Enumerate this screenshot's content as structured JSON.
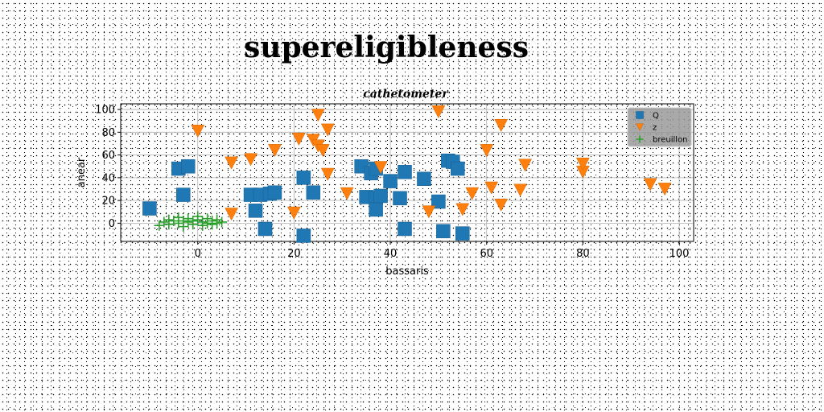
{
  "page_title": "supereligibleness",
  "chart_data": {
    "type": "scatter",
    "title": "cathetometer",
    "xlabel": "bassaris",
    "ylabel": "anear",
    "xlim": [
      -16,
      103
    ],
    "ylim": [
      -16,
      105
    ],
    "xticks": [
      0,
      20,
      40,
      60,
      80,
      100
    ],
    "yticks": [
      0,
      20,
      40,
      60,
      80,
      100
    ],
    "grid": true,
    "legend_position": "top-right",
    "series": [
      {
        "name": "Q",
        "marker": "square",
        "color": "#1f77b4",
        "points": [
          [
            -10,
            13
          ],
          [
            -4,
            48
          ],
          [
            -2,
            50
          ],
          [
            -3,
            25
          ],
          [
            11,
            25
          ],
          [
            12,
            11
          ],
          [
            13,
            25
          ],
          [
            14,
            -5
          ],
          [
            15,
            26
          ],
          [
            16,
            27
          ],
          [
            22,
            40
          ],
          [
            22,
            -11
          ],
          [
            24,
            27
          ],
          [
            34,
            50
          ],
          [
            35,
            23
          ],
          [
            36,
            44
          ],
          [
            37,
            48
          ],
          [
            37,
            22
          ],
          [
            37,
            12
          ],
          [
            38,
            24
          ],
          [
            40,
            37
          ],
          [
            42,
            22
          ],
          [
            43,
            45
          ],
          [
            43,
            -5
          ],
          [
            47,
            39
          ],
          [
            50,
            19
          ],
          [
            51,
            -7
          ],
          [
            52,
            55
          ],
          [
            53,
            54
          ],
          [
            54,
            48
          ],
          [
            55,
            -9
          ]
        ]
      },
      {
        "name": "z",
        "marker": "triangle-down",
        "color": "#ff7f0e",
        "points": [
          [
            0,
            81
          ],
          [
            7,
            8
          ],
          [
            7,
            53
          ],
          [
            11,
            56
          ],
          [
            16,
            64
          ],
          [
            20,
            9
          ],
          [
            21,
            74
          ],
          [
            24,
            73
          ],
          [
            25,
            68
          ],
          [
            25,
            95
          ],
          [
            26,
            64
          ],
          [
            27,
            82
          ],
          [
            27,
            43
          ],
          [
            31,
            26
          ],
          [
            38,
            49
          ],
          [
            48,
            10
          ],
          [
            50,
            98
          ],
          [
            55,
            12
          ],
          [
            57,
            26
          ],
          [
            60,
            64
          ],
          [
            61,
            31
          ],
          [
            63,
            16
          ],
          [
            63,
            86
          ],
          [
            67,
            29
          ],
          [
            68,
            51
          ],
          [
            80,
            45
          ],
          [
            80,
            52
          ],
          [
            94,
            34
          ],
          [
            97,
            30
          ]
        ]
      },
      {
        "name": "breuillon",
        "marker": "plus",
        "color": "#2ca02c",
        "points": [
          [
            -8,
            -2
          ],
          [
            -7,
            1
          ],
          [
            -6,
            3
          ],
          [
            -6,
            -1
          ],
          [
            -5,
            2
          ],
          [
            -4,
            5
          ],
          [
            -4,
            0
          ],
          [
            -3,
            2
          ],
          [
            -3,
            -3
          ],
          [
            -2,
            4
          ],
          [
            -2,
            1
          ],
          [
            -1,
            2
          ],
          [
            -1,
            -1
          ],
          [
            0,
            3
          ],
          [
            0,
            6
          ],
          [
            1,
            1
          ],
          [
            1,
            -2
          ],
          [
            2,
            4
          ],
          [
            2,
            0
          ],
          [
            3,
            2
          ],
          [
            3,
            -1
          ],
          [
            4,
            3
          ],
          [
            4,
            0
          ],
          [
            5,
            1
          ]
        ]
      }
    ]
  }
}
